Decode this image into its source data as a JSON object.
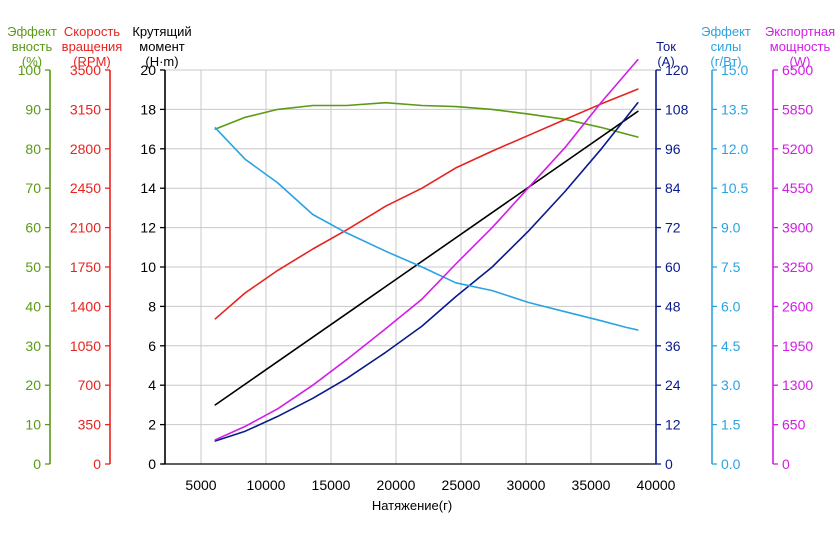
{
  "chart_data": {
    "type": "line",
    "xlabel": "Натяжение(г)",
    "xlim": [
      2000,
      40000
    ],
    "xticks": [
      5000,
      10000,
      15000,
      20000,
      25000,
      30000,
      35000,
      40000
    ],
    "grid": true,
    "axes": [
      {
        "id": "eff",
        "side": "left",
        "color": "#5a9a16",
        "title_lines": [
          "Эффект",
          "вность",
          "(%)"
        ],
        "min": 0,
        "max": 100,
        "ticks": [
          "0",
          "10",
          "20",
          "30",
          "40",
          "50",
          "60",
          "70",
          "80",
          "90",
          "100"
        ]
      },
      {
        "id": "rpm",
        "side": "left",
        "color": "#e8231f",
        "title_lines": [
          "Скорость",
          "вращения",
          "(RPM)"
        ],
        "min": 0,
        "max": 3500,
        "ticks": [
          "0",
          "350",
          "700",
          "1050",
          "1400",
          "1750",
          "2100",
          "2450",
          "2800",
          "3150",
          "3500"
        ]
      },
      {
        "id": "torque",
        "side": "left",
        "color": "#000000",
        "title_lines": [
          "Крутящий",
          "момент",
          "(Н·m)"
        ],
        "min": 0,
        "max": 20,
        "ticks": [
          "0",
          "2",
          "4",
          "6",
          "8",
          "10",
          "12",
          "14",
          "16",
          "18",
          "20"
        ]
      },
      {
        "id": "current",
        "side": "right",
        "color": "#0a1a8c",
        "title_lines": [
          "Ток",
          "(A)"
        ],
        "min": 0,
        "max": 120,
        "ticks": [
          "0",
          "12",
          "24",
          "36",
          "48",
          "60",
          "72",
          "84",
          "96",
          "108",
          "120"
        ]
      },
      {
        "id": "force_eff",
        "side": "right",
        "color": "#2aa3e2",
        "title_lines": [
          "Эффект",
          "силы",
          "(г/Вт)"
        ],
        "min": 0,
        "max": 15,
        "ticks": [
          "0.0",
          "1.5",
          "3.0",
          "4.5",
          "6.0",
          "7.5",
          "9.0",
          "10.5",
          "12.0",
          "13.5",
          "15.0"
        ]
      },
      {
        "id": "power",
        "side": "right",
        "color": "#d21de6",
        "title_lines": [
          "Экспортная",
          "мощность",
          "(W)"
        ],
        "min": 0,
        "max": 6500,
        "ticks": [
          "0",
          "650",
          "1300",
          "1950",
          "2600",
          "3250",
          "3900",
          "4550",
          "5200",
          "5850",
          "6500"
        ]
      }
    ],
    "series": [
      {
        "axis": "eff",
        "color": "#5a9a16",
        "x": [
          6100,
          8400,
          10900,
          13600,
          16200,
          19200,
          22000,
          24600,
          27400,
          30200,
          33000,
          35800,
          38600
        ],
        "y": [
          85,
          88,
          90,
          91,
          91,
          91.7,
          91,
          90.7,
          90,
          88.8,
          87.5,
          85.4,
          83
        ]
      },
      {
        "axis": "rpm",
        "color": "#e8231f",
        "x": [
          6100,
          8400,
          10900,
          13600,
          16200,
          19200,
          22000,
          24600,
          27400,
          30200,
          33000,
          35800,
          38600
        ],
        "y": [
          1290,
          1520,
          1720,
          1910,
          2080,
          2290,
          2450,
          2630,
          2780,
          2920,
          3060,
          3200,
          3330
        ]
      },
      {
        "axis": "torque",
        "color": "#000000",
        "x": [
          6100,
          38600
        ],
        "y": [
          3.0,
          17.9
        ]
      },
      {
        "axis": "current",
        "color": "#0a1a8c",
        "x": [
          6100,
          8400,
          10900,
          13600,
          16200,
          19200,
          22000,
          24600,
          27400,
          30200,
          33000,
          35800,
          38600
        ],
        "y": [
          7,
          10,
          14.5,
          20,
          26,
          34,
          42,
          51,
          60,
          71,
          83,
          96,
          110
        ]
      },
      {
        "axis": "force_eff",
        "color": "#2aa3e2",
        "x": [
          6100,
          8400,
          10900,
          13600,
          16200,
          19200,
          22000,
          24600,
          27400,
          30200,
          33000,
          35800,
          37700,
          38600
        ],
        "y": [
          12.8,
          11.6,
          10.7,
          9.5,
          8.8,
          8.1,
          7.5,
          6.9,
          6.6,
          6.15,
          5.8,
          5.45,
          5.2,
          5.1
        ]
      },
      {
        "axis": "power",
        "color": "#d21de6",
        "x": [
          6100,
          8400,
          10900,
          13600,
          16200,
          19200,
          22000,
          24600,
          27400,
          30200,
          33000,
          35800,
          38600
        ],
        "y": [
          400,
          620,
          910,
          1300,
          1720,
          2230,
          2720,
          3300,
          3900,
          4560,
          5220,
          5970,
          6670
        ]
      }
    ]
  }
}
